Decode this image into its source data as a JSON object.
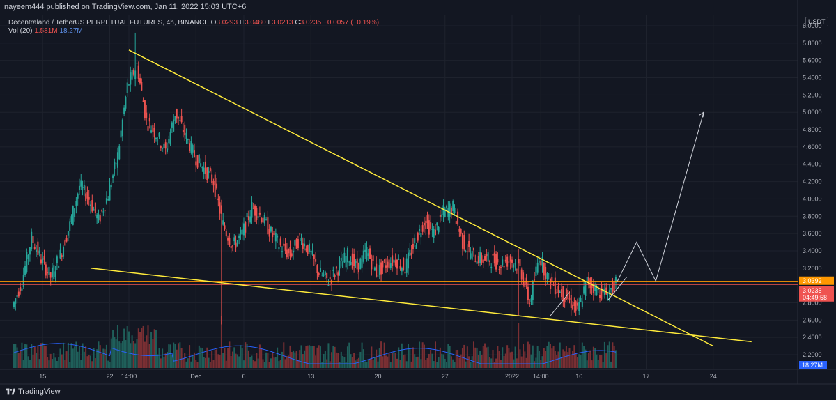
{
  "publisher_line": "nayeem444 published on TradingView.com, Jan 11, 2022 15:03 UTC+6",
  "legend": {
    "symbol": "Decentraland / TetherUS PERPETUAL FUTURES, 4h, BINANCE",
    "o_label": "O",
    "o_value": "3.0293",
    "h_label": "H",
    "h_value": "3.0480",
    "l_label": "L",
    "l_value": "3.0213",
    "c_label": "C",
    "c_value": "3.0235",
    "change": "−0.0057 (−0.19%)",
    "vol_label": "Vol (20)",
    "vol_value1": "1.581M",
    "vol_value2": "18.27M"
  },
  "currency_badge": "USDT",
  "price_label_orange": "3.0392",
  "price_label_red": "3.0235",
  "countdown": "04:49:58",
  "volume_axis_badge": "18.27M",
  "brand": "TradingView",
  "colors": {
    "background": "#131722",
    "up": "#26a69a",
    "down": "#ef5350",
    "trendline": "#ffeb3b",
    "support": "#ff9800",
    "volume_ma": "#2962ff",
    "projection": "#d1d4dc"
  },
  "chart_data": {
    "type": "candlestick",
    "ylim": [
      2.0,
      6.1
    ],
    "y_ticks": [
      "6.0000",
      "5.8000",
      "5.6000",
      "5.4000",
      "5.2000",
      "5.0000",
      "4.8000",
      "4.6000",
      "4.4000",
      "4.2000",
      "4.0000",
      "3.8000",
      "3.6000",
      "3.4000",
      "3.2000",
      "2.8000",
      "2.6000",
      "2.4000",
      "2.2000"
    ],
    "x_ticks": [
      "15",
      "22",
      "14:00",
      "Dec",
      "6",
      "13",
      "20",
      "27",
      "2022",
      "14:00",
      "10",
      "17",
      "24"
    ],
    "price_path": [
      {
        "x": "Nov 12",
        "y": 2.75
      },
      {
        "x": "Nov 13",
        "y": 3.05
      },
      {
        "x": "Nov 14",
        "y": 3.55
      },
      {
        "x": "Nov 15",
        "y": 3.3
      },
      {
        "x": "Nov 16",
        "y": 3.1
      },
      {
        "x": "Nov 17",
        "y": 3.35
      },
      {
        "x": "Nov 18",
        "y": 3.7
      },
      {
        "x": "Nov 19",
        "y": 4.15
      },
      {
        "x": "Nov 20",
        "y": 4.0
      },
      {
        "x": "Nov 21",
        "y": 3.75
      },
      {
        "x": "Nov 22",
        "y": 4.05
      },
      {
        "x": "Nov 23",
        "y": 4.5
      },
      {
        "x": "Nov 24",
        "y": 5.3
      },
      {
        "x": "Nov 25",
        "y": 5.55
      },
      {
        "x": "Nov 26",
        "y": 4.9
      },
      {
        "x": "Nov 27",
        "y": 4.75
      },
      {
        "x": "Nov 28",
        "y": 4.55
      },
      {
        "x": "Nov 29",
        "y": 5.0
      },
      {
        "x": "Nov 30",
        "y": 4.75
      },
      {
        "x": "Dec 1",
        "y": 4.5
      },
      {
        "x": "Dec 2",
        "y": 4.35
      },
      {
        "x": "Dec 3",
        "y": 4.2
      },
      {
        "x": "Dec 4",
        "y": 3.7
      },
      {
        "x": "Dec 5",
        "y": 3.45
      },
      {
        "x": "Dec 6",
        "y": 3.6
      },
      {
        "x": "Dec 7",
        "y": 3.9
      },
      {
        "x": "Dec 8",
        "y": 3.8
      },
      {
        "x": "Dec 9",
        "y": 3.6
      },
      {
        "x": "Dec 10",
        "y": 3.45
      },
      {
        "x": "Dec 11",
        "y": 3.35
      },
      {
        "x": "Dec 12",
        "y": 3.55
      },
      {
        "x": "Dec 13",
        "y": 3.4
      },
      {
        "x": "Dec 14",
        "y": 3.15
      },
      {
        "x": "Dec 15",
        "y": 3.05
      },
      {
        "x": "Dec 16",
        "y": 3.2
      },
      {
        "x": "Dec 17",
        "y": 3.35
      },
      {
        "x": "Dec 18",
        "y": 3.2
      },
      {
        "x": "Dec 19",
        "y": 3.4
      },
      {
        "x": "Dec 20",
        "y": 3.15
      },
      {
        "x": "Dec 21",
        "y": 3.25
      },
      {
        "x": "Dec 22",
        "y": 3.3
      },
      {
        "x": "Dec 23",
        "y": 3.2
      },
      {
        "x": "Dec 24",
        "y": 3.5
      },
      {
        "x": "Dec 25",
        "y": 3.75
      },
      {
        "x": "Dec 26",
        "y": 3.6
      },
      {
        "x": "Dec 27",
        "y": 3.85
      },
      {
        "x": "Dec 28",
        "y": 3.9
      },
      {
        "x": "Dec 29",
        "y": 3.5
      },
      {
        "x": "Dec 30",
        "y": 3.35
      },
      {
        "x": "Dec 31",
        "y": 3.3
      },
      {
        "x": "Jan 1",
        "y": 3.3
      },
      {
        "x": "Jan 2",
        "y": 3.25
      },
      {
        "x": "Jan 3",
        "y": 3.3
      },
      {
        "x": "Jan 4",
        "y": 3.2
      },
      {
        "x": "Jan 5",
        "y": 2.8
      },
      {
        "x": "Jan 6",
        "y": 3.35
      },
      {
        "x": "Jan 7",
        "y": 3.05
      },
      {
        "x": "Jan 8",
        "y": 2.95
      },
      {
        "x": "Jan 9",
        "y": 2.85
      },
      {
        "x": "Jan 10",
        "y": 2.7
      },
      {
        "x": "Jan 11",
        "y": 3.05
      },
      {
        "x": "Jan 12",
        "y": 2.95
      },
      {
        "x": "Jan 13",
        "y": 2.9
      },
      {
        "x": "Jan 14",
        "y": 3.02
      }
    ],
    "trendlines": [
      {
        "name": "upper",
        "from": {
          "x": "Nov 24",
          "y": 5.72
        },
        "to": {
          "x": "Jan 24",
          "y": 2.3
        }
      },
      {
        "name": "lower",
        "from": {
          "x": "Nov 20",
          "y": 3.2
        },
        "to": {
          "x": "Jan 28",
          "y": 2.35
        }
      }
    ],
    "support_level": 3.03,
    "projection": [
      {
        "x": "Jan 14",
        "y": 3.05
      },
      {
        "x": "Jan 16",
        "y": 3.5
      },
      {
        "x": "Jan 18",
        "y": 3.05
      },
      {
        "x": "Jan 23",
        "y": 5.0
      }
    ]
  }
}
